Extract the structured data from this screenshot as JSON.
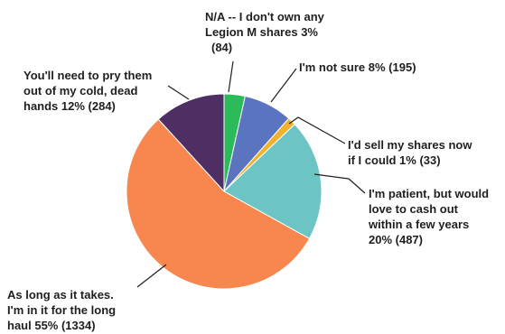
{
  "chart_data": {
    "type": "pie",
    "title": "",
    "colors": {
      "na": "#2bbb5b",
      "not_sure": "#5a74c0",
      "sell_now": "#f0b22c",
      "patient": "#6dc4c4",
      "long_haul": "#f7874e",
      "pry": "#4f2f63",
      "edge": "#ffffff",
      "leader": "#1f1f1f"
    },
    "slices": [
      {
        "key": "na",
        "percent": 3,
        "count": 84,
        "label_lines": [
          "N/A -- I don't own any",
          "Legion M shares 3%",
          "(84)"
        ]
      },
      {
        "key": "not_sure",
        "percent": 8,
        "count": 195,
        "label_lines": [
          "I'm not sure 8% (195)"
        ]
      },
      {
        "key": "sell_now",
        "percent": 1,
        "count": 33,
        "label_lines": [
          "I'd sell my shares now",
          "if I could 1% (33)"
        ]
      },
      {
        "key": "patient",
        "percent": 20,
        "count": 487,
        "label_lines": [
          "I'm patient, but would",
          "love to cash out",
          "within a few years",
          "20% (487)"
        ]
      },
      {
        "key": "long_haul",
        "percent": 55,
        "count": 1334,
        "label_lines": [
          "As long as it takes.",
          "I'm in it for the long",
          "haul 55% (1334)"
        ]
      },
      {
        "key": "pry",
        "percent": 12,
        "count": 284,
        "label_lines": [
          "You'll need to pry them",
          "out of my cold, dead",
          "hands 12% (284)"
        ]
      }
    ]
  }
}
